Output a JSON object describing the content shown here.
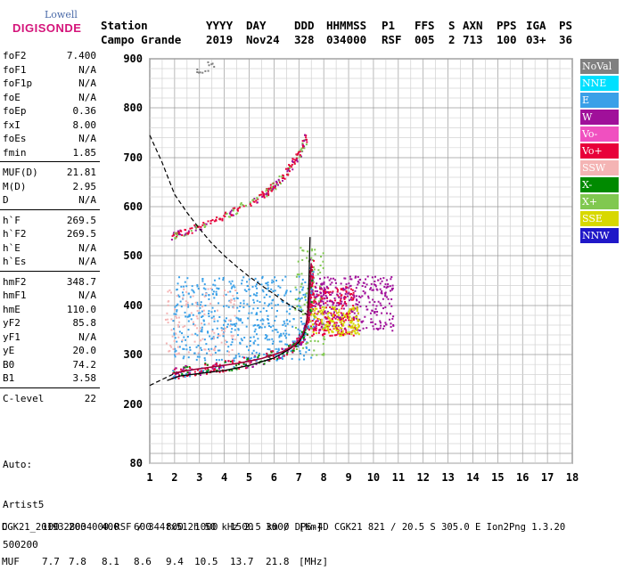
{
  "logo": {
    "line1": "Lowell",
    "line2": "DIGISONDE"
  },
  "header": {
    "labels": [
      "Station",
      "YYYY",
      "DAY",
      "DDD",
      "HHMMSS",
      "P1",
      "FFS",
      "S",
      "AXN",
      "PPS",
      "IGA",
      "PS"
    ],
    "values": [
      "Campo Grande",
      "2019",
      "Nov24",
      "328",
      "034000",
      "RSF",
      "005",
      "2",
      "713",
      "100",
      "03+",
      "36"
    ]
  },
  "params": [
    {
      "group": [
        {
          "label": "foF2",
          "value": "7.400"
        },
        {
          "label": "foF1",
          "value": "N/A"
        },
        {
          "label": "foF1p",
          "value": "N/A"
        },
        {
          "label": "foE",
          "value": "N/A"
        },
        {
          "label": "foEp",
          "value": "0.36"
        },
        {
          "label": "fxI",
          "value": "8.00"
        },
        {
          "label": "foEs",
          "value": "N/A"
        },
        {
          "label": "fmin",
          "value": "1.85"
        }
      ]
    },
    {
      "group": [
        {
          "label": "MUF(D)",
          "value": "21.81"
        },
        {
          "label": "M(D)",
          "value": "2.95"
        },
        {
          "label": "D",
          "value": "N/A"
        }
      ]
    },
    {
      "group": [
        {
          "label": "h`F",
          "value": "269.5"
        },
        {
          "label": "h`F2",
          "value": "269.5"
        },
        {
          "label": "h`E",
          "value": "N/A"
        },
        {
          "label": "h`Es",
          "value": "N/A"
        }
      ]
    },
    {
      "group": [
        {
          "label": "hmF2",
          "value": "348.7"
        },
        {
          "label": "hmF1",
          "value": "N/A"
        },
        {
          "label": "hmE",
          "value": "110.0"
        },
        {
          "label": "yF2",
          "value": "85.8"
        },
        {
          "label": "yF1",
          "value": "N/A"
        },
        {
          "label": "yE",
          "value": "20.0"
        },
        {
          "label": "B0",
          "value": "74.2"
        },
        {
          "label": "B1",
          "value": "3.58"
        }
      ]
    },
    {
      "group": [
        {
          "label": "C-level",
          "value": "22"
        }
      ]
    }
  ],
  "auto": {
    "line1": "Auto:",
    "line2": "Artist5",
    "line3": "500200"
  },
  "legend": [
    {
      "label": "NoVal",
      "color": "#808080"
    },
    {
      "label": "NNE",
      "color": "#00e0ff"
    },
    {
      "label": "E",
      "color": "#3aa0e8"
    },
    {
      "label": "W",
      "color": "#a0109a"
    },
    {
      "label": "Vo-",
      "color": "#f050c0"
    },
    {
      "label": "Vo+",
      "color": "#e8003a"
    },
    {
      "label": "SSW",
      "color": "#f4b4b4"
    },
    {
      "label": "X-",
      "color": "#008a00"
    },
    {
      "label": "X+",
      "color": "#80c850"
    },
    {
      "label": "SSE",
      "color": "#d8d800"
    },
    {
      "label": "NNW",
      "color": "#2018c8"
    }
  ],
  "muf_table": {
    "d_label": "D",
    "muf_label": "MUF",
    "distances": [
      "100",
      "200",
      "400",
      "600",
      "800",
      "1000",
      "1500",
      "3000"
    ],
    "distance_unit": "[km]",
    "mufs": [
      "7.7",
      "7.8",
      "8.1",
      "8.6",
      "9.4",
      "10.5",
      "13.7",
      "21.8"
    ],
    "muf_unit": "[MHz]"
  },
  "footer": "CGK21_2019328034000.RSF / 344fx512h 50 kHz 2.5 km / DPS-4D CGK21 821 / 20.5 S 305.0 E Ion2Png 1.3.20",
  "chart_data": {
    "type": "scatter",
    "xlim": [
      1,
      18
    ],
    "ylim": [
      80,
      900
    ],
    "x_ticks": [
      "1",
      "2",
      "3",
      "4",
      "5",
      "6",
      "7",
      "8",
      "9",
      "10",
      "11",
      "12",
      "13",
      "14",
      "15",
      "16",
      "17",
      "18"
    ],
    "y_ticks": [
      "80",
      "200",
      "300",
      "400",
      "500",
      "600",
      "700",
      "800",
      "900"
    ],
    "grid": true,
    "virtual_height_trace": [
      [
        1.9,
        262
      ],
      [
        2.5,
        268
      ],
      [
        3.5,
        275
      ],
      [
        4.5,
        282
      ],
      [
        5.5,
        292
      ],
      [
        6.3,
        305
      ],
      [
        6.8,
        318
      ],
      [
        7.1,
        335
      ],
      [
        7.3,
        360
      ],
      [
        7.4,
        395
      ],
      [
        7.45,
        440
      ],
      [
        7.5,
        485
      ]
    ],
    "profile_curve": [
      [
        1.7,
        248
      ],
      [
        2.2,
        257
      ],
      [
        3.0,
        262
      ],
      [
        4.0,
        268
      ],
      [
        5.0,
        278
      ],
      [
        6.0,
        293
      ],
      [
        6.6,
        310
      ],
      [
        7.0,
        325
      ],
      [
        7.2,
        342
      ],
      [
        7.35,
        380
      ],
      [
        7.4,
        440
      ],
      [
        7.42,
        480
      ],
      [
        7.45,
        538
      ]
    ],
    "muf_curve": [
      [
        1.0,
        745
      ],
      [
        1.5,
        690
      ],
      [
        2.0,
        625
      ],
      [
        2.5,
        588
      ],
      [
        3.0,
        555
      ],
      [
        3.5,
        525
      ],
      [
        4.0,
        500
      ],
      [
        4.5,
        478
      ],
      [
        5.0,
        458
      ],
      [
        5.5,
        440
      ],
      [
        6.0,
        423
      ],
      [
        6.5,
        405
      ],
      [
        7.0,
        390
      ],
      [
        7.5,
        378
      ]
    ],
    "lower_trace": [
      [
        1.0,
        238
      ],
      [
        1.5,
        250
      ],
      [
        2.0,
        262
      ],
      [
        2.5,
        268
      ]
    ],
    "f2_second_hop": [
      [
        1.9,
        540
      ],
      [
        2.5,
        552
      ],
      [
        3.5,
        572
      ],
      [
        4.5,
        596
      ],
      [
        5.5,
        625
      ],
      [
        6.0,
        645
      ],
      [
        6.5,
        672
      ],
      [
        7.0,
        710
      ],
      [
        7.3,
        745
      ]
    ],
    "clusters": [
      {
        "name": "E",
        "color": "#3aa0e8",
        "x": [
          1.9,
          7.6
        ],
        "y": [
          290,
          460
        ],
        "n": 520
      },
      {
        "name": "SSW",
        "color": "#f4b4b4",
        "x": [
          1.6,
          4.5
        ],
        "y": [
          300,
          440
        ],
        "n": 120
      },
      {
        "name": "Vo+",
        "color": "#e8003a",
        "x": [
          7.3,
          9.2
        ],
        "y": [
          340,
          440
        ],
        "n": 260
      },
      {
        "name": "W",
        "color": "#a0109a",
        "x": [
          7.6,
          10.8
        ],
        "y": [
          350,
          460
        ],
        "n": 300
      },
      {
        "name": "SSE",
        "color": "#d8d800",
        "x": [
          7.4,
          9.4
        ],
        "y": [
          340,
          400
        ],
        "n": 150
      },
      {
        "name": "X+",
        "color": "#80c850",
        "x": [
          6.8,
          8.0
        ],
        "y": [
          300,
          520
        ],
        "n": 90
      },
      {
        "name": "NoVal",
        "color": "#808080",
        "x": [
          2.8,
          3.6
        ],
        "y": [
          860,
          895
        ],
        "n": 12
      }
    ]
  }
}
